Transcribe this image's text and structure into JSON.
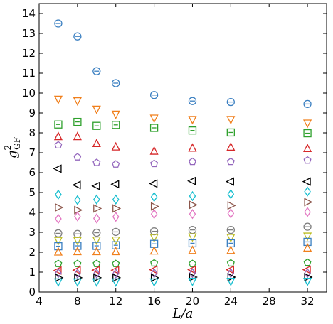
{
  "chart_data": {
    "type": "scatter",
    "xlabel": "L/a",
    "ylabel_main": "g",
    "ylabel_sup": "2",
    "ylabel_sub": "GF",
    "xlim": [
      4,
      34
    ],
    "ylim": [
      0,
      14.5
    ],
    "xticks": [
      4,
      8,
      12,
      16,
      20,
      24,
      28,
      32
    ],
    "yticks": [
      0,
      1,
      2,
      3,
      4,
      5,
      6,
      7,
      8,
      9,
      10,
      11,
      12,
      13,
      14
    ],
    "x": [
      6,
      8,
      10,
      12,
      16,
      20,
      24,
      32
    ],
    "series": [
      {
        "marker": "circle-bar",
        "color": "#3a7fc1",
        "values": [
          13.5,
          12.85,
          11.1,
          10.5,
          9.9,
          9.6,
          9.55,
          9.45
        ]
      },
      {
        "marker": "tri-down",
        "color": "#f07f1b",
        "values": [
          9.7,
          9.62,
          9.2,
          8.95,
          8.75,
          8.68,
          8.68,
          8.5
        ]
      },
      {
        "marker": "square-plus",
        "color": "#2ea02c",
        "values": [
          8.42,
          8.55,
          8.35,
          8.4,
          8.25,
          8.12,
          8.02,
          7.98
        ]
      },
      {
        "marker": "tri-up",
        "color": "#d62728",
        "values": [
          7.8,
          7.8,
          7.45,
          7.28,
          7.07,
          7.22,
          7.27,
          7.2
        ]
      },
      {
        "marker": "pentagon",
        "color": "#9467bd",
        "values": [
          7.38,
          6.78,
          6.5,
          6.42,
          6.45,
          6.55,
          6.55,
          6.62
        ]
      },
      {
        "marker": "tri-left",
        "color": "#000000",
        "values": [
          6.2,
          5.38,
          5.33,
          5.42,
          5.45,
          5.58,
          5.55,
          5.55
        ]
      },
      {
        "marker": "diamond-thin",
        "color": "#17becf",
        "values": [
          4.9,
          4.62,
          4.65,
          4.65,
          4.78,
          4.82,
          4.92,
          5.05
        ]
      },
      {
        "marker": "tri-right",
        "color": "#8c564b",
        "values": [
          4.25,
          4.12,
          4.2,
          4.2,
          4.3,
          4.38,
          4.35,
          4.52
        ]
      },
      {
        "marker": "diamond-thin",
        "color": "#e377c2",
        "values": [
          3.68,
          3.8,
          3.7,
          3.78,
          3.92,
          3.92,
          3.95,
          4.02
        ]
      },
      {
        "marker": "circle-bar",
        "color": "#7f7f7f",
        "values": [
          2.95,
          2.92,
          2.98,
          3.02,
          3.05,
          3.12,
          3.12,
          3.28
        ]
      },
      {
        "marker": "tri-down",
        "color": "#bcbd22",
        "values": [
          2.6,
          2.6,
          2.62,
          2.62,
          2.75,
          2.78,
          2.75,
          2.82
        ]
      },
      {
        "marker": "square-plus",
        "color": "#3a7fc1",
        "values": [
          2.3,
          2.32,
          2.32,
          2.35,
          2.42,
          2.45,
          2.45,
          2.52
        ]
      },
      {
        "marker": "tri-up",
        "color": "#f07f1b",
        "values": [
          2.0,
          2.02,
          2.02,
          2.02,
          2.05,
          2.08,
          2.08,
          2.2
        ]
      },
      {
        "marker": "pentagon",
        "color": "#2ea02c",
        "values": [
          1.42,
          1.42,
          1.42,
          1.42,
          1.45,
          1.42,
          1.45,
          1.48
        ]
      },
      {
        "marker": "tri-left",
        "color": "#d62728",
        "values": [
          1.08,
          1.1,
          1.1,
          1.1,
          1.12,
          1.12,
          1.12,
          1.12
        ]
      },
      {
        "marker": "diamond-thin",
        "color": "#9467bd",
        "values": [
          0.95,
          0.93,
          0.93,
          0.93,
          0.95,
          0.95,
          0.95,
          0.95
        ]
      },
      {
        "marker": "tri-right",
        "color": "#000000",
        "values": [
          0.72,
          0.72,
          0.72,
          0.72,
          0.72,
          0.75,
          0.75,
          0.75
        ]
      },
      {
        "marker": "tri-down",
        "color": "#17becf",
        "values": [
          0.52,
          0.52,
          0.52,
          0.52,
          0.52,
          0.55,
          0.55,
          0.55
        ]
      }
    ],
    "grid": false,
    "legend": false
  }
}
